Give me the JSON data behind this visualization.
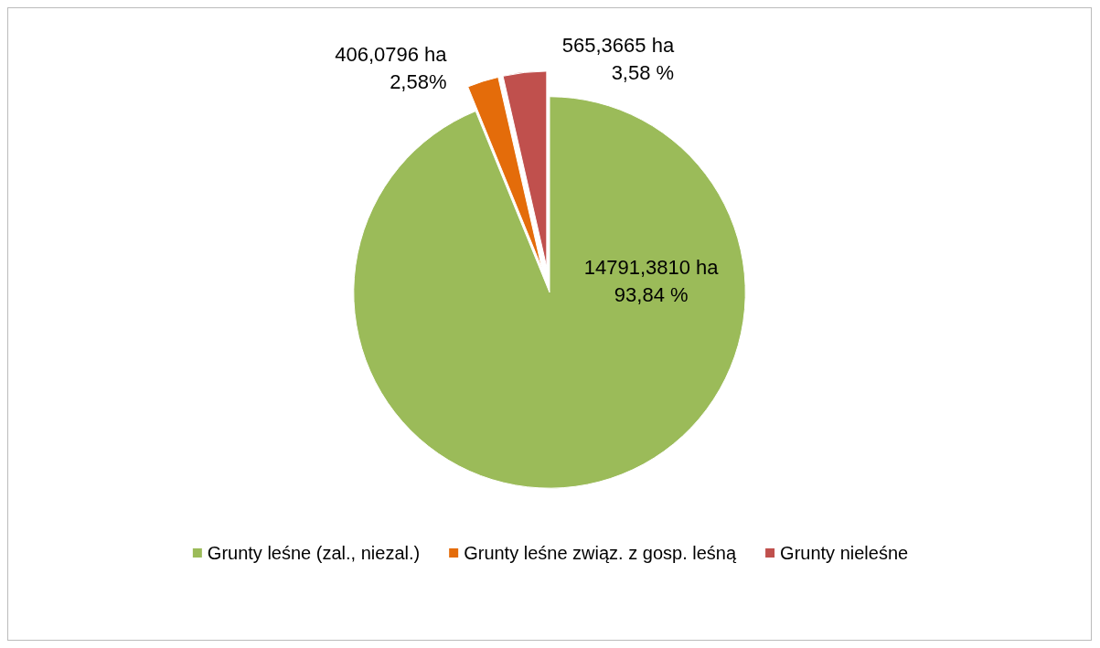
{
  "chart_data": {
    "type": "pie",
    "categories": [
      "Grunty leśne (zal., niezal.)",
      "Grunty leśne związ. z gosp. leśną",
      "Grunty nieleśne"
    ],
    "values": [
      93.84,
      2.58,
      3.58
    ],
    "value_labels": [
      "14791,3810 ha\n93,84 %",
      "406,0796 ha\n2,58%",
      "565,3665 ha\n3,58 %"
    ],
    "colors": [
      "#9bbb59",
      "#e46c0a",
      "#c0504d"
    ],
    "legend": "bottom"
  }
}
